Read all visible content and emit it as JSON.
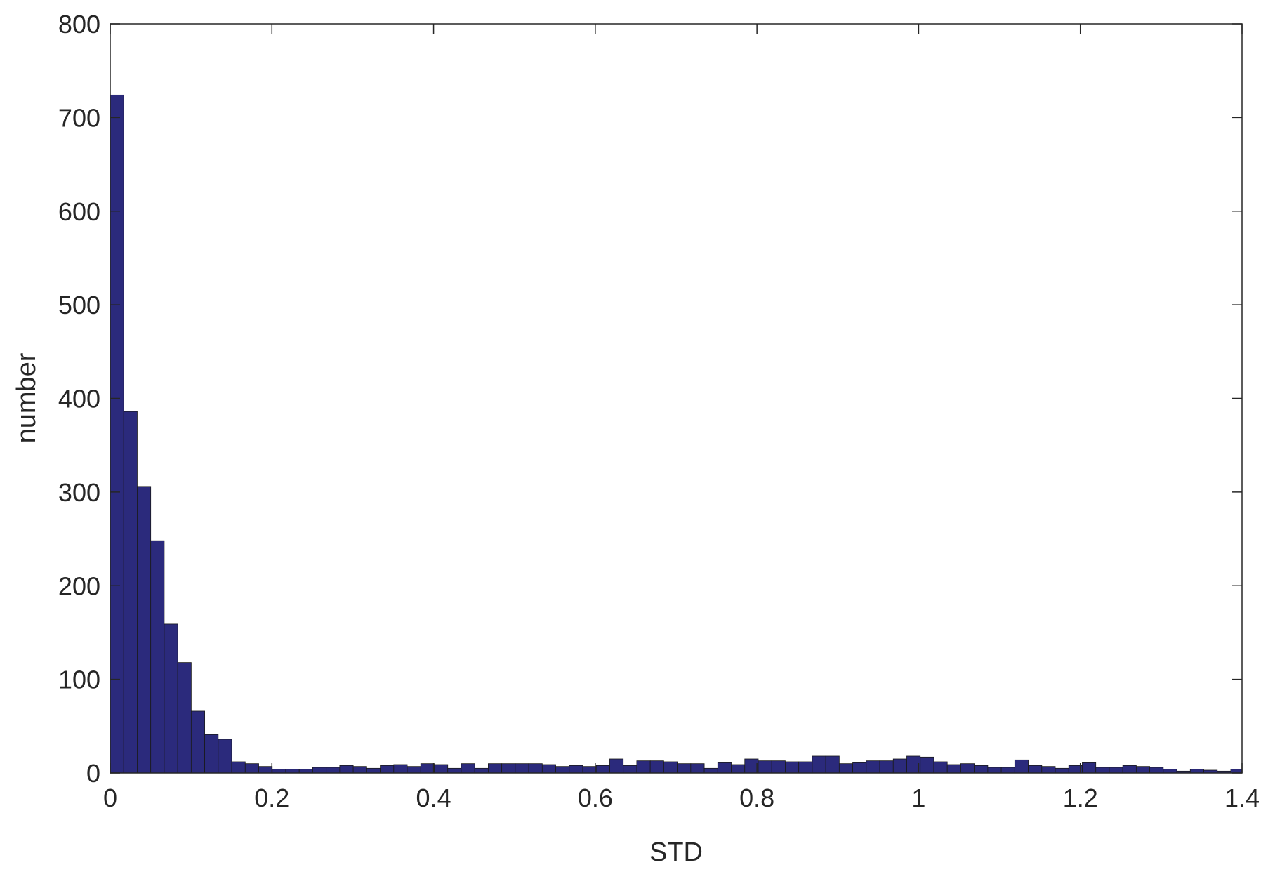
{
  "chart_data": {
    "type": "bar",
    "title": "",
    "xlabel": "STD",
    "ylabel": "number",
    "xlim": [
      0,
      1.4
    ],
    "ylim": [
      0,
      800
    ],
    "grid": false,
    "bar_color": "#2b2a7c",
    "x_ticks": [
      0,
      0.2,
      0.4,
      0.6,
      0.8,
      1,
      1.2,
      1.4
    ],
    "x_tick_labels": [
      "0",
      "0.2",
      "0.4",
      "0.6",
      "0.8",
      "1",
      "1.2",
      "1.4"
    ],
    "y_ticks": [
      0,
      100,
      200,
      300,
      400,
      500,
      600,
      700,
      800
    ],
    "y_tick_labels": [
      "0",
      "100",
      "200",
      "300",
      "400",
      "500",
      "600",
      "700",
      "800"
    ],
    "bin_width": 0.0167,
    "bin_start": 0,
    "values": [
      724,
      386,
      306,
      248,
      159,
      118,
      66,
      41,
      36,
      12,
      10,
      7,
      4,
      4,
      4,
      6,
      6,
      8,
      7,
      5,
      8,
      9,
      7,
      10,
      9,
      5,
      10,
      5,
      10,
      10,
      10,
      10,
      9,
      7,
      8,
      7,
      8,
      15,
      8,
      13,
      13,
      12,
      10,
      10,
      5,
      11,
      9,
      15,
      13,
      13,
      12,
      12,
      18,
      18,
      10,
      11,
      13,
      13,
      15,
      18,
      17,
      12,
      9,
      10,
      8,
      6,
      6,
      14,
      8,
      7,
      5,
      8,
      11,
      6,
      6,
      8,
      7,
      6,
      4,
      2,
      4,
      3,
      2,
      4,
      5,
      7
    ]
  }
}
